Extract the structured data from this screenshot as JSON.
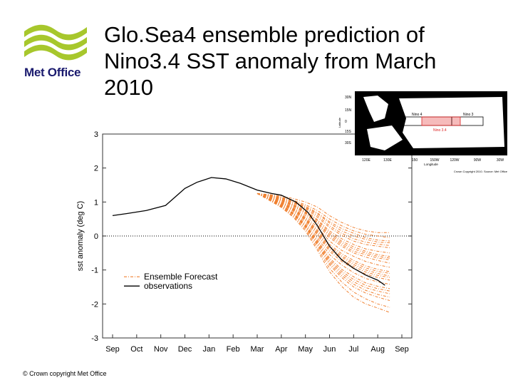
{
  "title": "Glo.Sea4 ensemble prediction of Nino3.4 SST anomaly from March 2010",
  "logo": {
    "text": "Met Office"
  },
  "footer": "© Crown copyright   Met Office",
  "colors": {
    "brand_green": "#a7c72c",
    "brand_navy": "#1a1a6e",
    "forecast": "#f08030",
    "observations": "#000000"
  },
  "chart_data": {
    "type": "line",
    "ylabel": "sst anomaly (deg C)",
    "xlabel": "",
    "categories": [
      "Sep",
      "Oct",
      "Nov",
      "Dec",
      "Jan",
      "Feb",
      "Mar",
      "Apr",
      "May",
      "Jun",
      "Jul",
      "Aug",
      "Sep"
    ],
    "ylim": [
      -3,
      3
    ],
    "yticks": [
      3,
      2,
      1,
      0,
      -1,
      -2,
      -3
    ],
    "zero_line": "dotted",
    "legend": {
      "placement": "lower-left",
      "entries": [
        "Ensemble Forecast",
        "observations"
      ]
    },
    "series": [
      {
        "name": "observations",
        "x": [
          0,
          0.6,
          1.4,
          2.2,
          3.0,
          3.5,
          4.1,
          4.7,
          5.3,
          6.0,
          6.6,
          7.0,
          7.6,
          8.1,
          8.5,
          9.0,
          9.5,
          10.0,
          10.5,
          11.0,
          11.3
        ],
        "values": [
          0.6,
          0.66,
          0.75,
          0.9,
          1.4,
          1.58,
          1.72,
          1.68,
          1.55,
          1.35,
          1.25,
          1.2,
          1.0,
          0.7,
          0.3,
          -0.3,
          -0.7,
          -0.95,
          -1.15,
          -1.3,
          -1.45
        ]
      },
      {
        "name": "Ensemble Forecast",
        "start_x": 6.0,
        "start_value": 1.25,
        "x": [
          6.5,
          7.0,
          7.5,
          8.0,
          8.5,
          9.0,
          9.5,
          10.0,
          10.5,
          11.0,
          11.5
        ],
        "note": "ensemble members",
        "members": [
          [
            1.22,
            1.18,
            1.1,
            1.0,
            0.85,
            0.6,
            0.4,
            0.25,
            0.15,
            0.1,
            0.1
          ],
          [
            1.2,
            1.15,
            1.05,
            0.92,
            0.75,
            0.5,
            0.3,
            0.15,
            0.05,
            0.0,
            -0.05
          ],
          [
            1.2,
            1.12,
            1.0,
            0.85,
            0.65,
            0.38,
            0.15,
            0.0,
            -0.1,
            -0.18,
            -0.2
          ],
          [
            1.18,
            1.1,
            0.98,
            0.8,
            0.55,
            0.25,
            0.02,
            -0.15,
            -0.25,
            -0.3,
            -0.35
          ],
          [
            1.18,
            1.08,
            0.95,
            0.75,
            0.48,
            0.15,
            -0.08,
            -0.25,
            -0.38,
            -0.45,
            -0.5
          ],
          [
            1.16,
            1.06,
            0.9,
            0.7,
            0.4,
            0.05,
            -0.2,
            -0.38,
            -0.5,
            -0.6,
            -0.65
          ],
          [
            1.15,
            1.04,
            0.88,
            0.65,
            0.33,
            -0.05,
            -0.3,
            -0.5,
            -0.62,
            -0.72,
            -0.8
          ],
          [
            1.14,
            1.02,
            0.85,
            0.6,
            0.25,
            -0.15,
            -0.42,
            -0.6,
            -0.75,
            -0.85,
            -0.92
          ],
          [
            1.13,
            1.0,
            0.82,
            0.55,
            0.18,
            -0.25,
            -0.52,
            -0.72,
            -0.88,
            -0.98,
            -1.05
          ],
          [
            1.12,
            0.98,
            0.78,
            0.5,
            0.1,
            -0.35,
            -0.62,
            -0.84,
            -1.0,
            -1.1,
            -1.18
          ],
          [
            1.11,
            0.96,
            0.75,
            0.45,
            0.02,
            -0.45,
            -0.75,
            -0.96,
            -1.12,
            -1.22,
            -1.3
          ],
          [
            1.1,
            0.94,
            0.72,
            0.4,
            -0.05,
            -0.55,
            -0.85,
            -1.08,
            -1.25,
            -1.35,
            -1.42
          ],
          [
            1.1,
            0.92,
            0.68,
            0.35,
            -0.12,
            -0.65,
            -0.98,
            -1.2,
            -1.38,
            -1.48,
            -1.55
          ],
          [
            1.08,
            0.9,
            0.65,
            0.3,
            -0.2,
            -0.75,
            -1.1,
            -1.35,
            -1.52,
            -1.62,
            -1.7
          ],
          [
            1.07,
            0.88,
            0.62,
            0.25,
            -0.28,
            -0.85,
            -1.22,
            -1.5,
            -1.68,
            -1.8,
            -1.9
          ],
          [
            1.06,
            0.86,
            0.58,
            0.2,
            -0.35,
            -0.95,
            -1.35,
            -1.65,
            -1.85,
            -2.0,
            -2.1
          ],
          [
            1.05,
            0.84,
            0.55,
            0.15,
            -0.42,
            -1.05,
            -1.48,
            -1.8,
            -2.0,
            -2.12,
            -2.25
          ],
          [
            1.2,
            1.14,
            1.03,
            0.88,
            0.68,
            0.42,
            0.22,
            0.08,
            -0.05,
            -0.12,
            -0.15
          ],
          [
            1.17,
            1.07,
            0.92,
            0.72,
            0.45,
            0.1,
            -0.15,
            -0.32,
            -0.45,
            -0.55,
            -0.6
          ],
          [
            1.13,
            0.99,
            0.8,
            0.52,
            0.14,
            -0.3,
            -0.58,
            -0.78,
            -0.94,
            -1.04,
            -1.1
          ],
          [
            1.09,
            0.91,
            0.66,
            0.32,
            -0.16,
            -0.7,
            -1.04,
            -1.28,
            -1.45,
            -1.55,
            -1.62
          ],
          [
            1.15,
            1.05,
            0.9,
            0.68,
            0.38,
            0.0,
            -0.25,
            -0.45,
            -0.55,
            -0.65,
            -0.7
          ],
          [
            1.12,
            0.97,
            0.77,
            0.48,
            0.06,
            -0.4,
            -0.68,
            -0.9,
            -1.06,
            -1.16,
            -1.22
          ],
          [
            1.19,
            1.11,
            0.99,
            0.83,
            0.6,
            0.3,
            0.08,
            -0.08,
            -0.18,
            -0.24,
            -0.28
          ],
          [
            1.08,
            0.89,
            0.63,
            0.28,
            -0.24,
            -0.8,
            -1.16,
            -1.42,
            -1.6,
            -1.72,
            -1.8
          ]
        ]
      }
    ]
  },
  "inset_map": {
    "lat_labels": [
      "30N",
      "15N",
      "0",
      "15S",
      "30S"
    ],
    "lon_labels": [
      "120E",
      "130E",
      "150",
      "150W",
      "120W",
      "90W",
      "30W"
    ],
    "region_labels": [
      "Nino 4",
      "Nino 3",
      "Nino 3.4"
    ],
    "ylabel": "Latitude",
    "xlabel": "Longitude",
    "credit": "Crown Copyright 2010. Source: Met Office"
  }
}
